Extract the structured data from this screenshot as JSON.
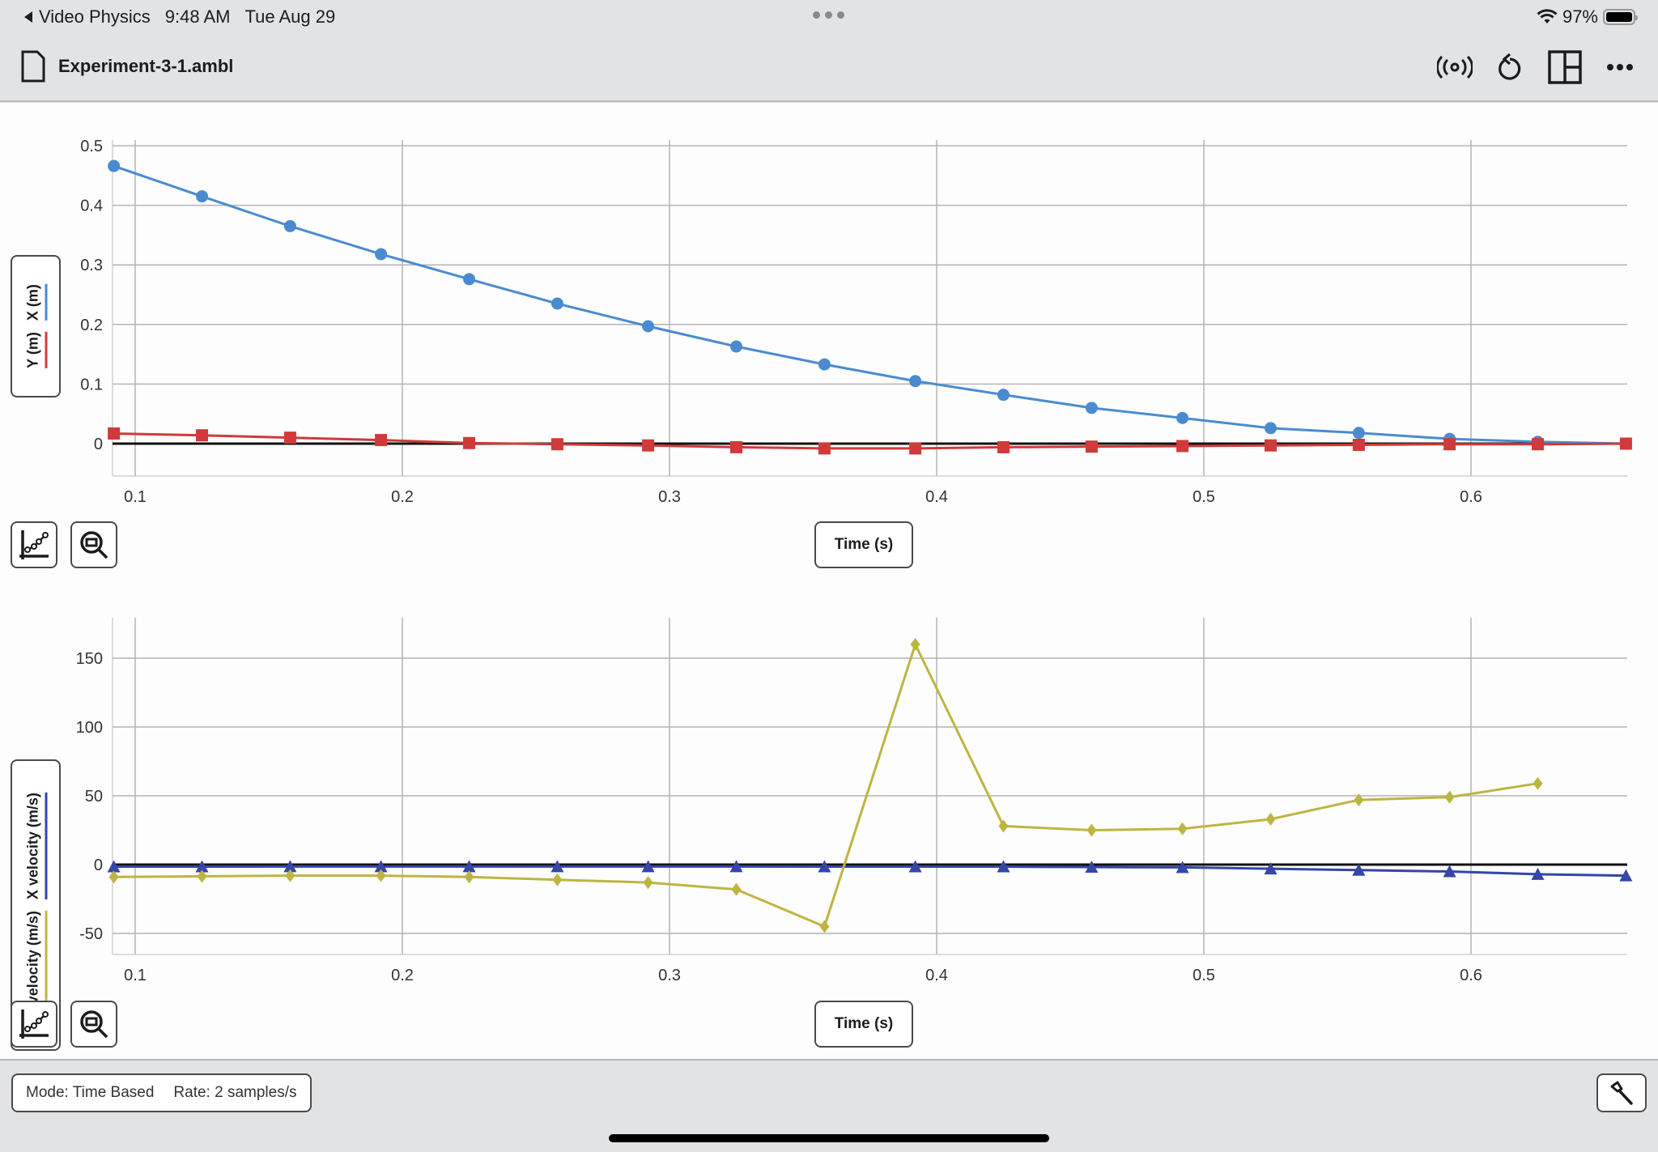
{
  "statusbar": {
    "back_app": "Video Physics",
    "time": "9:48 AM",
    "date": "Tue Aug 29",
    "battery": "97%"
  },
  "toolbar": {
    "file_name": "Experiment-3-1.ambl",
    "icons": [
      "file-icon",
      "broadcast-icon",
      "undo-icon",
      "layout-icon",
      "more-icon"
    ]
  },
  "graph1": {
    "legend": [
      {
        "label": "X (m)",
        "color": "#4a8bd0"
      },
      {
        "label": "Y (m)",
        "color": "#d03a3a"
      }
    ],
    "x_axis_button": "Time (s)"
  },
  "graph2": {
    "legend": [
      {
        "label": "X velocity (m/s)",
        "color": "#3545a8"
      },
      {
        "label": "Y velocity (m/s)",
        "color": "#bdb542"
      }
    ],
    "x_axis_button": "Time (s)"
  },
  "footer": {
    "mode": "Mode: Time Based",
    "rate": "Rate: 2 samples/s"
  },
  "chart_data": [
    {
      "type": "line",
      "title": "",
      "xlabel": "Time (s)",
      "ylabel": "X (m), Y (m)",
      "xlim": [
        0.092,
        0.658
      ],
      "ylim": [
        -0.055,
        0.51
      ],
      "xticks": [
        0.1,
        0.2,
        0.3,
        0.4,
        0.5,
        0.6
      ],
      "yticks": [
        0,
        0.1,
        0.2,
        0.3,
        0.4,
        0.5
      ],
      "grid": true,
      "legend_position": "left",
      "x": [
        0.092,
        0.125,
        0.158,
        0.192,
        0.225,
        0.258,
        0.292,
        0.325,
        0.358,
        0.392,
        0.425,
        0.458,
        0.492,
        0.525,
        0.558,
        0.592,
        0.625,
        0.658
      ],
      "series": [
        {
          "name": "X (m)",
          "color": "#4a8bd0",
          "marker": "circle",
          "values": [
            0.466,
            0.415,
            0.365,
            0.318,
            0.276,
            0.235,
            0.197,
            0.163,
            0.133,
            0.105,
            0.082,
            0.06,
            0.043,
            0.026,
            0.018,
            0.008,
            0.003,
            0.0
          ]
        },
        {
          "name": "Y (m)",
          "color": "#d03a3a",
          "marker": "square",
          "values": [
            0.017,
            0.014,
            0.01,
            0.006,
            0.001,
            -0.001,
            -0.003,
            -0.006,
            -0.008,
            -0.008,
            -0.006,
            -0.005,
            -0.004,
            -0.003,
            -0.002,
            -0.001,
            -0.001,
            0.0
          ]
        }
      ]
    },
    {
      "type": "line",
      "title": "",
      "xlabel": "Time (s)",
      "ylabel": "X velocity (m/s), Y velocity (m/s)",
      "xlim": [
        0.092,
        0.658
      ],
      "ylim": [
        -66,
        180
      ],
      "xticks": [
        0.1,
        0.2,
        0.3,
        0.4,
        0.5,
        0.6
      ],
      "yticks": [
        -50,
        0,
        50,
        100,
        150
      ],
      "grid": true,
      "legend_position": "left",
      "x": [
        0.092,
        0.125,
        0.158,
        0.192,
        0.225,
        0.258,
        0.292,
        0.325,
        0.358,
        0.392,
        0.425,
        0.458,
        0.492,
        0.525,
        0.558,
        0.592,
        0.625,
        0.658
      ],
      "series": [
        {
          "name": "X velocity (m/s)",
          "color": "#3545a8",
          "marker": "triangle",
          "values": [
            -1.5,
            -1.5,
            -1.4,
            -1.4,
            -1.4,
            -1.4,
            -1.4,
            -1.4,
            -1.5,
            -1.5,
            -1.5,
            -1.8,
            -2.0,
            -3.0,
            -4.0,
            -5.0,
            -7.0,
            -8.0
          ]
        },
        {
          "name": "Y velocity (m/s)",
          "color": "#bdb542",
          "marker": "diamond",
          "values": [
            -9,
            -8.5,
            -8,
            -8,
            -9,
            -11,
            -13,
            -18,
            -45,
            160,
            28,
            25,
            26,
            33,
            47,
            49,
            59,
            null
          ]
        }
      ]
    }
  ]
}
